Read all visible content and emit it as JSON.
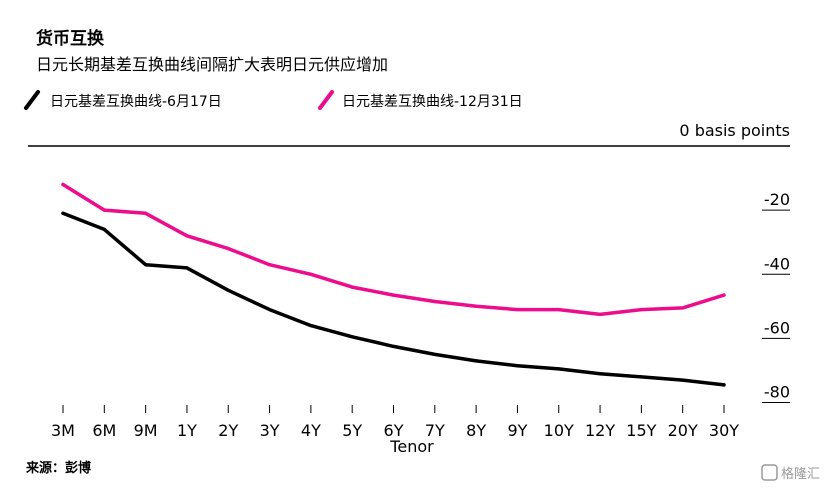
{
  "chart_data": {
    "type": "line",
    "title": "货币互换",
    "subtitle": "日元长期基差互换曲线间隔扩大表明日元供应增加",
    "xlabel": "Tenor",
    "ylabel": "",
    "y_unit_label": "0 basis points",
    "categories": [
      "3M",
      "6M",
      "9M",
      "1Y",
      "2Y",
      "3Y",
      "4Y",
      "5Y",
      "6Y",
      "7Y",
      "8Y",
      "9Y",
      "10Y",
      "12Y",
      "15Y",
      "20Y",
      "30Y"
    ],
    "ylim": [
      -87,
      0
    ],
    "yticks": [
      -20,
      -40,
      -60,
      -80
    ],
    "grid": false,
    "legend_position": "top-left",
    "series": [
      {
        "name": "日元基差互换曲线-6月17日",
        "color": "#000000",
        "values": [
          -21,
          -26,
          -37,
          -38,
          -45,
          -51,
          -56,
          -59.5,
          -62.5,
          -65,
          -67,
          -68.5,
          -69.5,
          -71,
          -72,
          -73,
          -74.5
        ]
      },
      {
        "name": "日元基差互换曲线-12月31日",
        "color": "#ec0c8c",
        "values": [
          -12,
          -20,
          -21,
          -28,
          -32,
          -37,
          -40,
          -44,
          -46.5,
          -48.5,
          -50,
          -51,
          -51,
          -52.5,
          -51,
          -50.5,
          -46.5
        ]
      }
    ]
  },
  "source": "来源：彭博",
  "watermark": "格隆汇"
}
